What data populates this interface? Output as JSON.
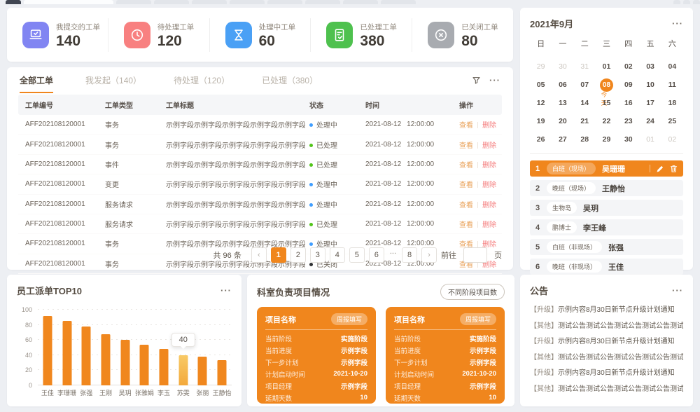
{
  "icons": {
    "more": "···",
    "prev": "‹",
    "next": "›"
  },
  "colors": {
    "accent": "#f0861d",
    "status_processing": "#409eff",
    "status_done": "#52c41a",
    "status_closed": "#303133",
    "view_link": "#e9a158",
    "delete_link": "#f57d7d"
  },
  "stats": {
    "items": [
      {
        "icon": "laptop-check-icon",
        "color": "#8185f2",
        "label": "我提交的工单",
        "value": "140"
      },
      {
        "icon": "clock-icon",
        "color": "#f88080",
        "label": "待处理工单",
        "value": "120"
      },
      {
        "icon": "hourglass-icon",
        "color": "#4aa0f5",
        "label": "处理中工单",
        "value": "60"
      },
      {
        "icon": "doc-check-icon",
        "color": "#4ec14e",
        "label": "已处理工单",
        "value": "380"
      },
      {
        "icon": "circle-x-icon",
        "color": "#a8abb0",
        "label": "已关闭工单",
        "value": "80"
      }
    ]
  },
  "workorders": {
    "tabs": [
      {
        "label": "全部工单",
        "active": true
      },
      {
        "label": "我发起（140）",
        "active": false
      },
      {
        "label": "待处理（120）",
        "active": false
      },
      {
        "label": "已处理（380）",
        "active": false
      }
    ],
    "columns": [
      "工单编号",
      "工单类型",
      "工单标题",
      "状态",
      "时间",
      "操作"
    ],
    "view_label": "查看",
    "delete_label": "删除",
    "rows": [
      {
        "id": "AFF202108120001",
        "type": "事务",
        "title": "示例字段示例字段示例字段示例字段示例字段",
        "status": "处理中",
        "status_color": "#409eff",
        "date": "2021-08-12",
        "time": "12:00:00"
      },
      {
        "id": "AFF202108120001",
        "type": "事务",
        "title": "示例字段示例字段示例字段示例字段示例字段",
        "status": "已处理",
        "status_color": "#52c41a",
        "date": "2021-08-12",
        "time": "12:00:00"
      },
      {
        "id": "AFF202108120001",
        "type": "事件",
        "title": "示例字段示例字段示例字段示例字段示例字段",
        "status": "已处理",
        "status_color": "#52c41a",
        "date": "2021-08-12",
        "time": "12:00:00"
      },
      {
        "id": "AFF202108120001",
        "type": "变更",
        "title": "示例字段示例字段示例字段示例字段示例字段",
        "status": "处理中",
        "status_color": "#409eff",
        "date": "2021-08-12",
        "time": "12:00:00"
      },
      {
        "id": "AFF202108120001",
        "type": "服务请求",
        "title": "示例字段示例字段示例字段示例字段示例字段",
        "status": "处理中",
        "status_color": "#409eff",
        "date": "2021-08-12",
        "time": "12:00:00"
      },
      {
        "id": "AFF202108120001",
        "type": "服务请求",
        "title": "示例字段示例字段示例字段示例字段示例字段",
        "status": "已处理",
        "status_color": "#52c41a",
        "date": "2021-08-12",
        "time": "12:00:00"
      },
      {
        "id": "AFF202108120001",
        "type": "事务",
        "title": "示例字段示例字段示例字段示例字段示例字段",
        "status": "处理中",
        "status_color": "#409eff",
        "date": "2021-08-12",
        "time": "12:00:00"
      },
      {
        "id": "AFF202108120001",
        "type": "事务",
        "title": "示例字段示例字段示例字段示例字段示例字段",
        "status": "已关闭",
        "status_color": "#303133",
        "date": "2021-08-12",
        "time": "12:00:00"
      }
    ],
    "pagination": {
      "total": "共 96 条",
      "pages": [
        "1",
        "2",
        "3",
        "4",
        "5",
        "6",
        "...",
        "8"
      ],
      "active": "1",
      "jump_label": "前往",
      "jump_unit": "页",
      "jump_value": ""
    }
  },
  "calendar": {
    "title": "2021年9月",
    "weekdays": [
      "日",
      "一",
      "二",
      "三",
      "四",
      "五",
      "六"
    ],
    "today_label": "今天",
    "cells": [
      {
        "d": "29",
        "muted": true
      },
      {
        "d": "30",
        "muted": true
      },
      {
        "d": "31",
        "muted": true
      },
      {
        "d": "01"
      },
      {
        "d": "02"
      },
      {
        "d": "03"
      },
      {
        "d": "04"
      },
      {
        "d": "05"
      },
      {
        "d": "06"
      },
      {
        "d": "07"
      },
      {
        "d": "08",
        "today": true
      },
      {
        "d": "09"
      },
      {
        "d": "10"
      },
      {
        "d": "11"
      },
      {
        "d": "12"
      },
      {
        "d": "13"
      },
      {
        "d": "14"
      },
      {
        "d": "15"
      },
      {
        "d": "16"
      },
      {
        "d": "17"
      },
      {
        "d": "18"
      },
      {
        "d": "19"
      },
      {
        "d": "20"
      },
      {
        "d": "21"
      },
      {
        "d": "22"
      },
      {
        "d": "23"
      },
      {
        "d": "24"
      },
      {
        "d": "25"
      },
      {
        "d": "26"
      },
      {
        "d": "27"
      },
      {
        "d": "28"
      },
      {
        "d": "29"
      },
      {
        "d": "30"
      },
      {
        "d": "01",
        "muted": true
      },
      {
        "d": "02",
        "muted": true
      }
    ]
  },
  "shifts": [
    {
      "no": "1",
      "badge": "白班（现场）",
      "name": "吴珊珊",
      "active": true
    },
    {
      "no": "2",
      "badge": "晚班（现场）",
      "name": "王静怡",
      "active": false
    },
    {
      "no": "3",
      "badge": "生物岛",
      "name": "吴玥",
      "active": false
    },
    {
      "no": "4",
      "badge": "鹏博士",
      "name": "李王峰",
      "active": false
    },
    {
      "no": "5",
      "badge": "白班（非现场）",
      "name": "张强",
      "active": false
    },
    {
      "no": "6",
      "badge": "晚班（非现场）",
      "name": "王佳",
      "active": false
    }
  ],
  "chart_card": {
    "title": "员工派单TOP10"
  },
  "chart_data": {
    "type": "bar",
    "title": "员工派单TOP10",
    "categories": [
      "王佳",
      "李珊珊",
      "张强",
      "王刚",
      "吴玥",
      "张雅娟",
      "李玉",
      "苏雯",
      "张丽",
      "王静怡"
    ],
    "values": [
      92,
      85,
      78,
      68,
      60,
      54,
      48,
      40,
      38,
      33
    ],
    "xlabel": "",
    "ylabel": "",
    "ylim": [
      0,
      100
    ],
    "yticks": [
      0,
      20,
      40,
      60,
      80,
      100
    ],
    "grid": "dotted-horizontal",
    "bar_color": "#f0871e",
    "highlight": {
      "index": 7,
      "color": "#f6c05c",
      "tooltip": "40"
    }
  },
  "projects": {
    "title": "科室负责项目情况",
    "button": "不同阶段项目数",
    "cards": [
      {
        "name": "项目名称",
        "badge": "周报填写",
        "fields": [
          {
            "label": "当前阶段",
            "value": "实施阶段"
          },
          {
            "label": "当前进度",
            "value": "示例字段"
          },
          {
            "label": "下一步计划",
            "value": "示例字段"
          },
          {
            "label": "计划启动时间",
            "value": "2021-10-20"
          },
          {
            "label": "项目经理",
            "value": "示例字段"
          },
          {
            "label": "延期天数",
            "value": "10"
          }
        ]
      },
      {
        "name": "项目名称",
        "badge": "周报填写",
        "fields": [
          {
            "label": "当前阶段",
            "value": "实施阶段"
          },
          {
            "label": "当前进度",
            "value": "示例字段"
          },
          {
            "label": "下一步计划",
            "value": "示例字段"
          },
          {
            "label": "计划启动时间",
            "value": "2021-10-20"
          },
          {
            "label": "项目经理",
            "value": "示例字段"
          },
          {
            "label": "延期天数",
            "value": "10"
          }
        ]
      }
    ]
  },
  "notices": {
    "title": "公告",
    "items": [
      {
        "tag": "【升级】",
        "text": "示例内容8月30日新节点升级计划通知"
      },
      {
        "tag": "【其他】",
        "text": "测试公告测试公告测试公告测试公告测试公告"
      },
      {
        "tag": "【升级】",
        "text": "示例内容8月30日新节点升级计划通知"
      },
      {
        "tag": "【其他】",
        "text": "测试公告测试公告测试公告测试公告测试公告"
      },
      {
        "tag": "【升级】",
        "text": "示例内容8月30日新节点升级计划通知"
      },
      {
        "tag": "【其他】",
        "text": "测试公告测试公告测试公告测试公告测试公告"
      }
    ]
  }
}
